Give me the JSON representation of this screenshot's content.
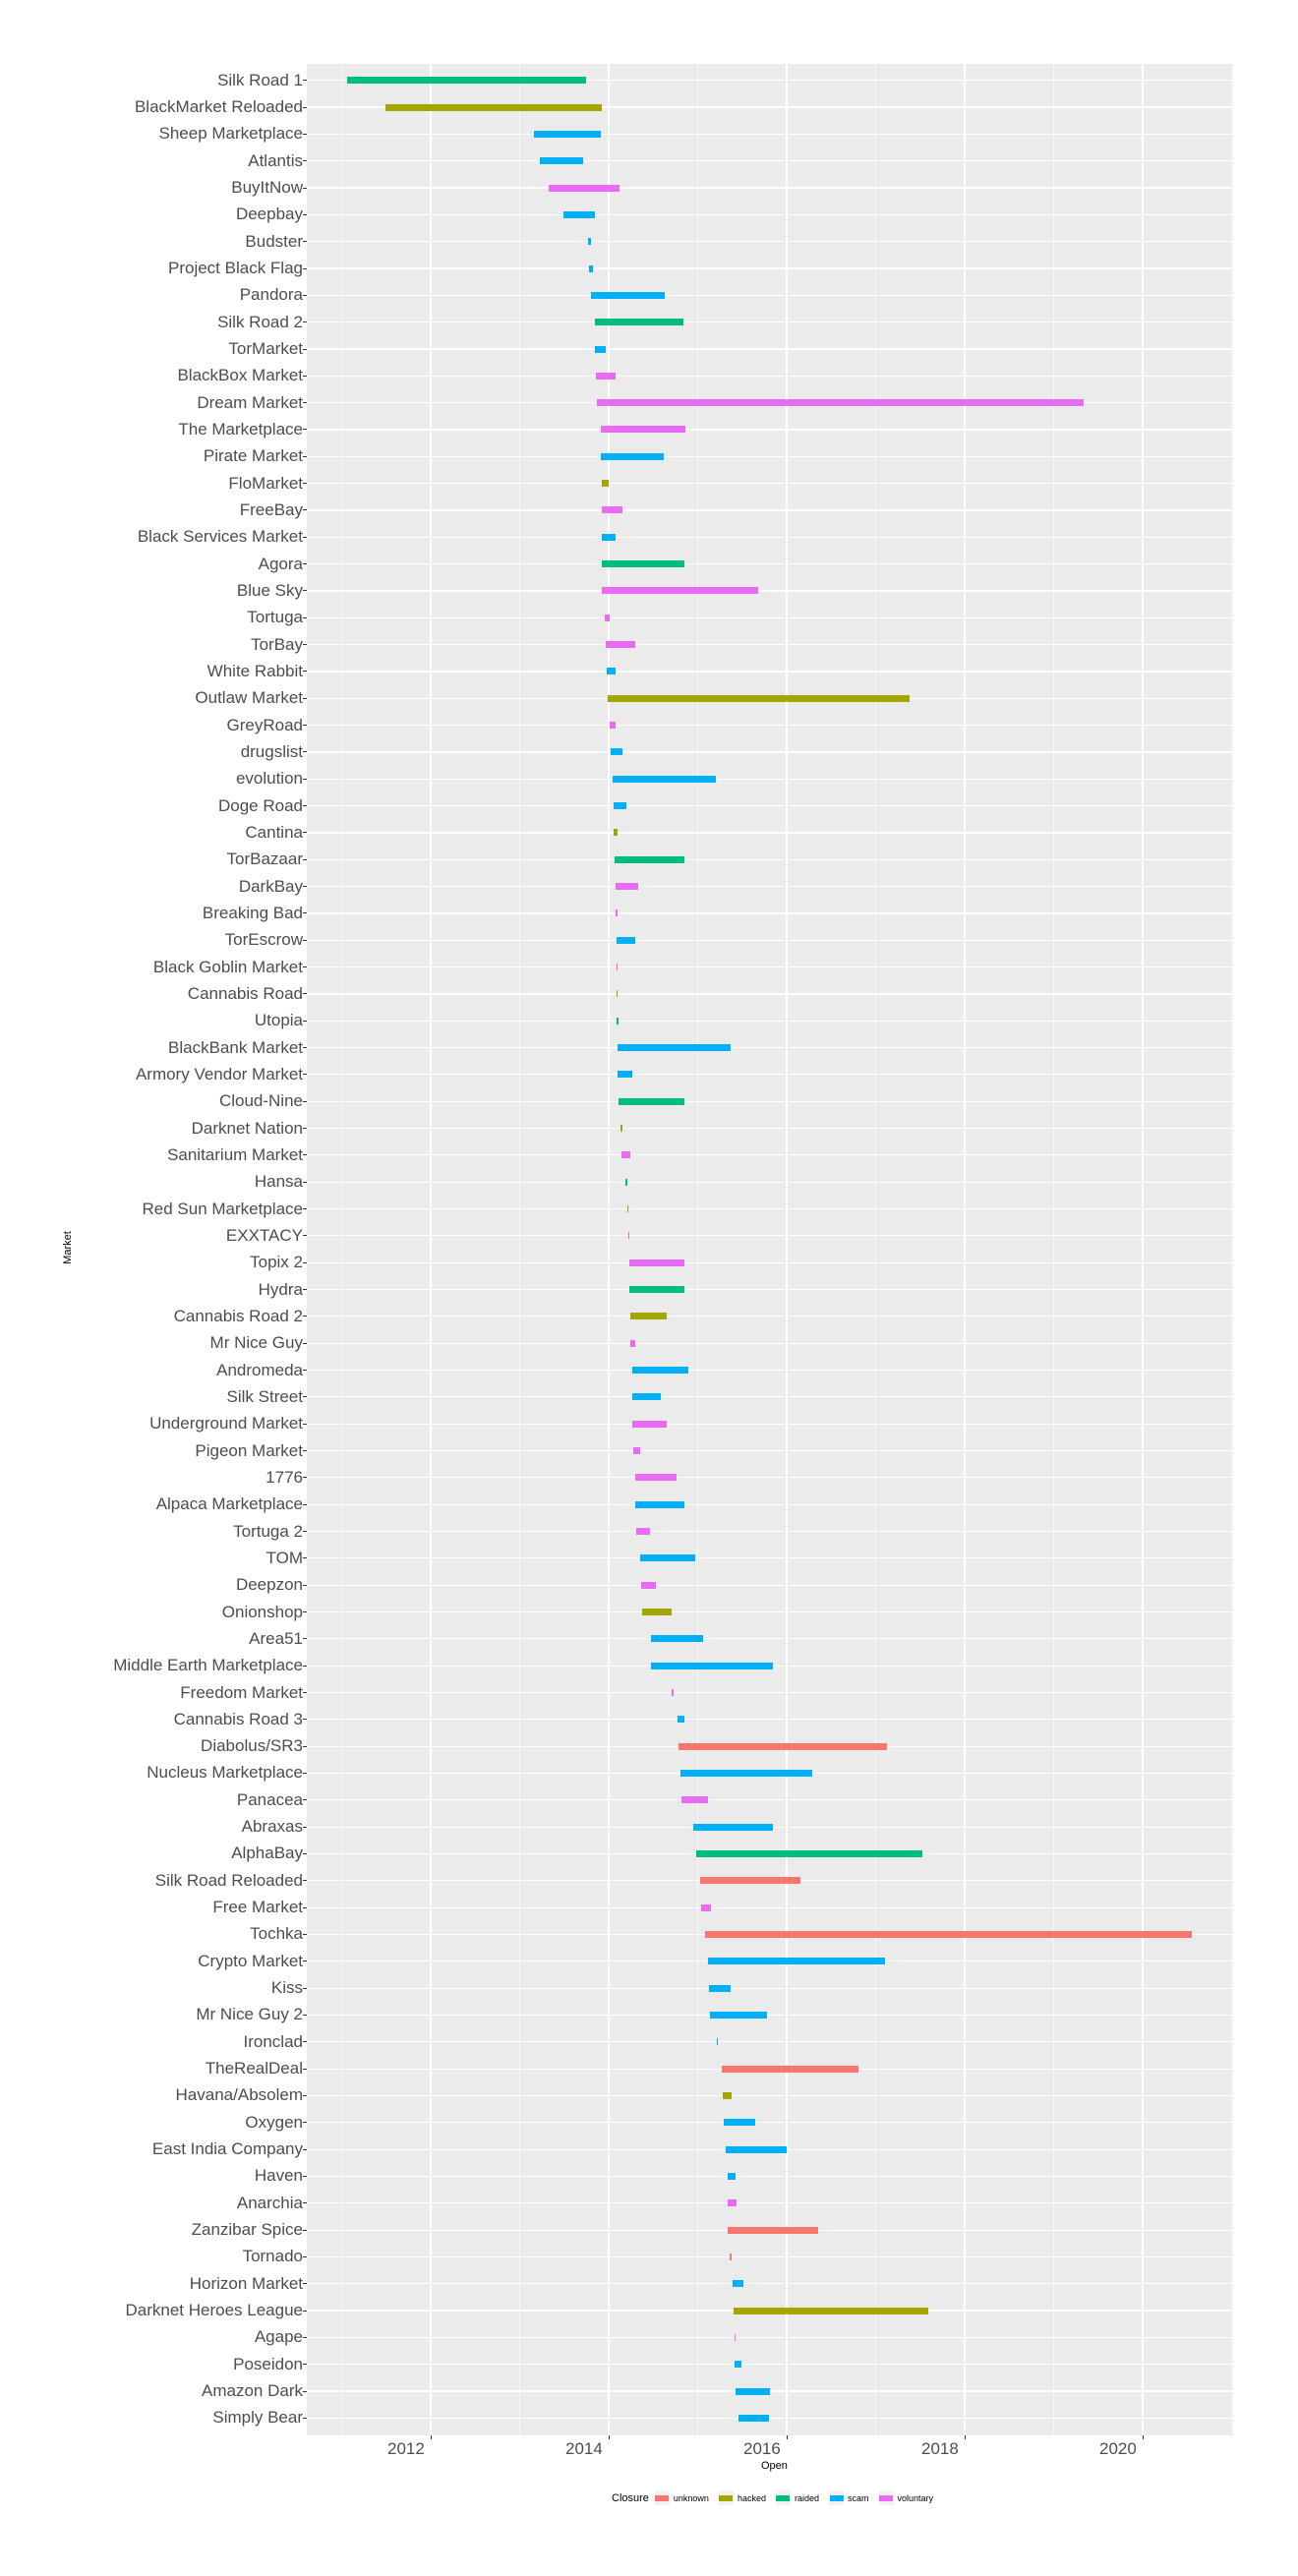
{
  "chart_data": {
    "type": "bar",
    "subtype": "horizontal-range (timeline)",
    "title": "",
    "xlabel": "Open",
    "ylabel": "Market",
    "xlim": [
      2010.8,
      2021.2
    ],
    "x_ticks": [
      2012,
      2014,
      2016,
      2018,
      2020
    ],
    "grid": true,
    "legend": {
      "title": "Closure",
      "position": "bottom",
      "entries": [
        {
          "label": "unknown",
          "color": "#F8766D"
        },
        {
          "label": "hacked",
          "color": "#A3A500"
        },
        {
          "label": "raided",
          "color": "#00BF7D"
        },
        {
          "label": "scam",
          "color": "#00B0F6"
        },
        {
          "label": "voluntary",
          "color": "#E76BF3"
        }
      ]
    },
    "series": [
      {
        "market": "Silk Road 1",
        "open": 2011.06,
        "close": 2013.75,
        "closure": "raided"
      },
      {
        "market": "BlackMarket Reloaded",
        "open": 2011.49,
        "close": 2013.92,
        "closure": "hacked"
      },
      {
        "market": "Sheep Marketplace",
        "open": 2013.16,
        "close": 2013.91,
        "closure": "scam"
      },
      {
        "market": "Atlantis",
        "open": 2013.23,
        "close": 2013.71,
        "closure": "scam"
      },
      {
        "market": "BuyItNow",
        "open": 2013.33,
        "close": 2014.12,
        "closure": "voluntary"
      },
      {
        "market": "Deepbay",
        "open": 2013.49,
        "close": 2013.84,
        "closure": "scam"
      },
      {
        "market": "Budster",
        "open": 2013.77,
        "close": 2013.8,
        "closure": "scam"
      },
      {
        "market": "Project Black Flag",
        "open": 2013.78,
        "close": 2013.82,
        "closure": "scam"
      },
      {
        "market": "Pandora",
        "open": 2013.8,
        "close": 2014.63,
        "closure": "scam"
      },
      {
        "market": "Silk Road 2",
        "open": 2013.85,
        "close": 2014.84,
        "closure": "raided"
      },
      {
        "market": "TorMarket",
        "open": 2013.85,
        "close": 2013.97,
        "closure": "scam"
      },
      {
        "market": "BlackBox Market",
        "open": 2013.86,
        "close": 2014.08,
        "closure": "voluntary"
      },
      {
        "market": "Dream Market",
        "open": 2013.87,
        "close": 2019.34,
        "closure": "voluntary"
      },
      {
        "market": "The Marketplace",
        "open": 2013.91,
        "close": 2014.86,
        "closure": "voluntary"
      },
      {
        "market": "Pirate Market",
        "open": 2013.91,
        "close": 2014.62,
        "closure": "scam"
      },
      {
        "market": "FloMarket",
        "open": 2013.92,
        "close": 2014.0,
        "closure": "hacked"
      },
      {
        "market": "FreeBay",
        "open": 2013.92,
        "close": 2014.16,
        "closure": "voluntary"
      },
      {
        "market": "Black Services Market",
        "open": 2013.92,
        "close": 2014.08,
        "closure": "scam"
      },
      {
        "market": "Agora",
        "open": 2013.92,
        "close": 2014.85,
        "closure": "raided"
      },
      {
        "market": "Blue Sky",
        "open": 2013.92,
        "close": 2015.68,
        "closure": "voluntary"
      },
      {
        "market": "Tortuga",
        "open": 2013.96,
        "close": 2014.01,
        "closure": "voluntary"
      },
      {
        "market": "TorBay",
        "open": 2013.97,
        "close": 2014.3,
        "closure": "voluntary"
      },
      {
        "market": "White Rabbit",
        "open": 2013.98,
        "close": 2014.08,
        "closure": "scam"
      },
      {
        "market": "Outlaw Market",
        "open": 2013.99,
        "close": 2017.38,
        "closure": "hacked"
      },
      {
        "market": "GreyRoad",
        "open": 2014.01,
        "close": 2014.08,
        "closure": "voluntary"
      },
      {
        "market": "drugslist",
        "open": 2014.02,
        "close": 2014.16,
        "closure": "scam"
      },
      {
        "market": "evolution",
        "open": 2014.04,
        "close": 2015.2,
        "closure": "scam"
      },
      {
        "market": "Doge Road",
        "open": 2014.05,
        "close": 2014.2,
        "closure": "scam"
      },
      {
        "market": "Cantina",
        "open": 2014.05,
        "close": 2014.1,
        "closure": "hacked"
      },
      {
        "market": "TorBazaar",
        "open": 2014.07,
        "close": 2014.85,
        "closure": "raided"
      },
      {
        "market": "DarkBay",
        "open": 2014.08,
        "close": 2014.33,
        "closure": "voluntary"
      },
      {
        "market": "Breaking Bad",
        "open": 2014.08,
        "close": 2014.1,
        "closure": "voluntary"
      },
      {
        "market": "TorEscrow",
        "open": 2014.09,
        "close": 2014.3,
        "closure": "scam"
      },
      {
        "market": "Black Goblin Market",
        "open": 2014.09,
        "close": 2014.1,
        "closure": "unknown"
      },
      {
        "market": "Cannabis Road",
        "open": 2014.09,
        "close": 2014.1,
        "closure": "hacked"
      },
      {
        "market": "Utopia",
        "open": 2014.09,
        "close": 2014.11,
        "closure": "raided"
      },
      {
        "market": "BlackBank Market",
        "open": 2014.1,
        "close": 2015.37,
        "closure": "scam"
      },
      {
        "market": "Armory Vendor Market",
        "open": 2014.1,
        "close": 2014.26,
        "closure": "scam"
      },
      {
        "market": "Cloud-Nine",
        "open": 2014.11,
        "close": 2014.85,
        "closure": "raided"
      },
      {
        "market": "Darknet Nation",
        "open": 2014.13,
        "close": 2014.16,
        "closure": "hacked"
      },
      {
        "market": "Sanitarium Market",
        "open": 2014.14,
        "close": 2014.24,
        "closure": "voluntary"
      },
      {
        "market": "Hansa",
        "open": 2014.19,
        "close": 2014.21,
        "closure": "raided"
      },
      {
        "market": "Red Sun Marketplace",
        "open": 2014.21,
        "close": 2014.22,
        "closure": "hacked"
      },
      {
        "market": "EXXTACY",
        "open": 2014.22,
        "close": 2014.23,
        "closure": "unknown"
      },
      {
        "market": "Topix 2",
        "open": 2014.23,
        "close": 2014.85,
        "closure": "voluntary"
      },
      {
        "market": "Hydra",
        "open": 2014.23,
        "close": 2014.85,
        "closure": "raided"
      },
      {
        "market": "Cannabis Road 2",
        "open": 2014.24,
        "close": 2014.65,
        "closure": "hacked"
      },
      {
        "market": "Mr Nice Guy",
        "open": 2014.24,
        "close": 2014.3,
        "closure": "voluntary"
      },
      {
        "market": "Andromeda",
        "open": 2014.26,
        "close": 2014.89,
        "closure": "scam"
      },
      {
        "market": "Silk Street",
        "open": 2014.27,
        "close": 2014.59,
        "closure": "scam"
      },
      {
        "market": "Underground Market",
        "open": 2014.27,
        "close": 2014.65,
        "closure": "voluntary"
      },
      {
        "market": "Pigeon Market",
        "open": 2014.28,
        "close": 2014.35,
        "closure": "voluntary"
      },
      {
        "market": "1776",
        "open": 2014.3,
        "close": 2014.76,
        "closure": "voluntary"
      },
      {
        "market": "Alpaca Marketplace",
        "open": 2014.3,
        "close": 2014.85,
        "closure": "scam"
      },
      {
        "market": "Tortuga 2",
        "open": 2014.31,
        "close": 2014.46,
        "closure": "voluntary"
      },
      {
        "market": "TOM",
        "open": 2014.35,
        "close": 2014.97,
        "closure": "scam"
      },
      {
        "market": "Deepzon",
        "open": 2014.37,
        "close": 2014.53,
        "closure": "voluntary"
      },
      {
        "market": "Onionshop",
        "open": 2014.38,
        "close": 2014.71,
        "closure": "hacked"
      },
      {
        "market": "Area51",
        "open": 2014.47,
        "close": 2015.06,
        "closure": "scam"
      },
      {
        "market": "Middle Earth Marketplace",
        "open": 2014.47,
        "close": 2015.85,
        "closure": "scam"
      },
      {
        "market": "Freedom Market",
        "open": 2014.71,
        "close": 2014.73,
        "closure": "voluntary"
      },
      {
        "market": "Cannabis Road 3",
        "open": 2014.77,
        "close": 2014.85,
        "closure": "scam"
      },
      {
        "market": "Diabolus/SR3",
        "open": 2014.78,
        "close": 2017.13,
        "closure": "unknown"
      },
      {
        "market": "Nucleus Marketplace",
        "open": 2014.81,
        "close": 2016.29,
        "closure": "scam"
      },
      {
        "market": "Panacea",
        "open": 2014.82,
        "close": 2015.12,
        "closure": "voluntary"
      },
      {
        "market": "Abraxas",
        "open": 2014.95,
        "close": 2015.85,
        "closure": "scam"
      },
      {
        "market": "AlphaBay",
        "open": 2014.98,
        "close": 2017.52,
        "closure": "raided"
      },
      {
        "market": "Silk Road Reloaded",
        "open": 2015.03,
        "close": 2016.16,
        "closure": "unknown"
      },
      {
        "market": "Free Market",
        "open": 2015.04,
        "close": 2015.15,
        "closure": "voluntary"
      },
      {
        "market": "Tochka",
        "open": 2015.08,
        "close": 2020.55,
        "closure": "unknown"
      },
      {
        "market": "Crypto Market",
        "open": 2015.12,
        "close": 2017.11,
        "closure": "scam"
      },
      {
        "market": "Kiss",
        "open": 2015.13,
        "close": 2015.37,
        "closure": "scam"
      },
      {
        "market": "Mr Nice Guy 2",
        "open": 2015.14,
        "close": 2015.78,
        "closure": "scam"
      },
      {
        "market": "Ironclad",
        "open": 2015.21,
        "close": 2015.23,
        "closure": "scam"
      },
      {
        "market": "TheRealDeal",
        "open": 2015.27,
        "close": 2016.81,
        "closure": "unknown"
      },
      {
        "market": "Havana/Absolem",
        "open": 2015.28,
        "close": 2015.38,
        "closure": "hacked"
      },
      {
        "market": "Oxygen",
        "open": 2015.29,
        "close": 2015.65,
        "closure": "scam"
      },
      {
        "market": "East India Company",
        "open": 2015.32,
        "close": 2016.0,
        "closure": "scam"
      },
      {
        "market": "Haven",
        "open": 2015.34,
        "close": 2015.42,
        "closure": "scam"
      },
      {
        "market": "Anarchia",
        "open": 2015.34,
        "close": 2015.44,
        "closure": "voluntary"
      },
      {
        "market": "Zanzibar Spice",
        "open": 2015.34,
        "close": 2016.35,
        "closure": "unknown"
      },
      {
        "market": "Tornado",
        "open": 2015.36,
        "close": 2015.38,
        "closure": "unknown"
      },
      {
        "market": "Horizon Market",
        "open": 2015.39,
        "close": 2015.51,
        "closure": "scam"
      },
      {
        "market": "Darknet Heroes League",
        "open": 2015.4,
        "close": 2017.59,
        "closure": "hacked"
      },
      {
        "market": "Agape",
        "open": 2015.41,
        "close": 2015.42,
        "closure": "voluntary"
      },
      {
        "market": "Poseidon",
        "open": 2015.41,
        "close": 2015.49,
        "closure": "scam"
      },
      {
        "market": "Amazon Dark",
        "open": 2015.43,
        "close": 2015.81,
        "closure": "scam"
      },
      {
        "market": "Simply Bear",
        "open": 2015.46,
        "close": 2015.8,
        "closure": "scam"
      }
    ]
  }
}
